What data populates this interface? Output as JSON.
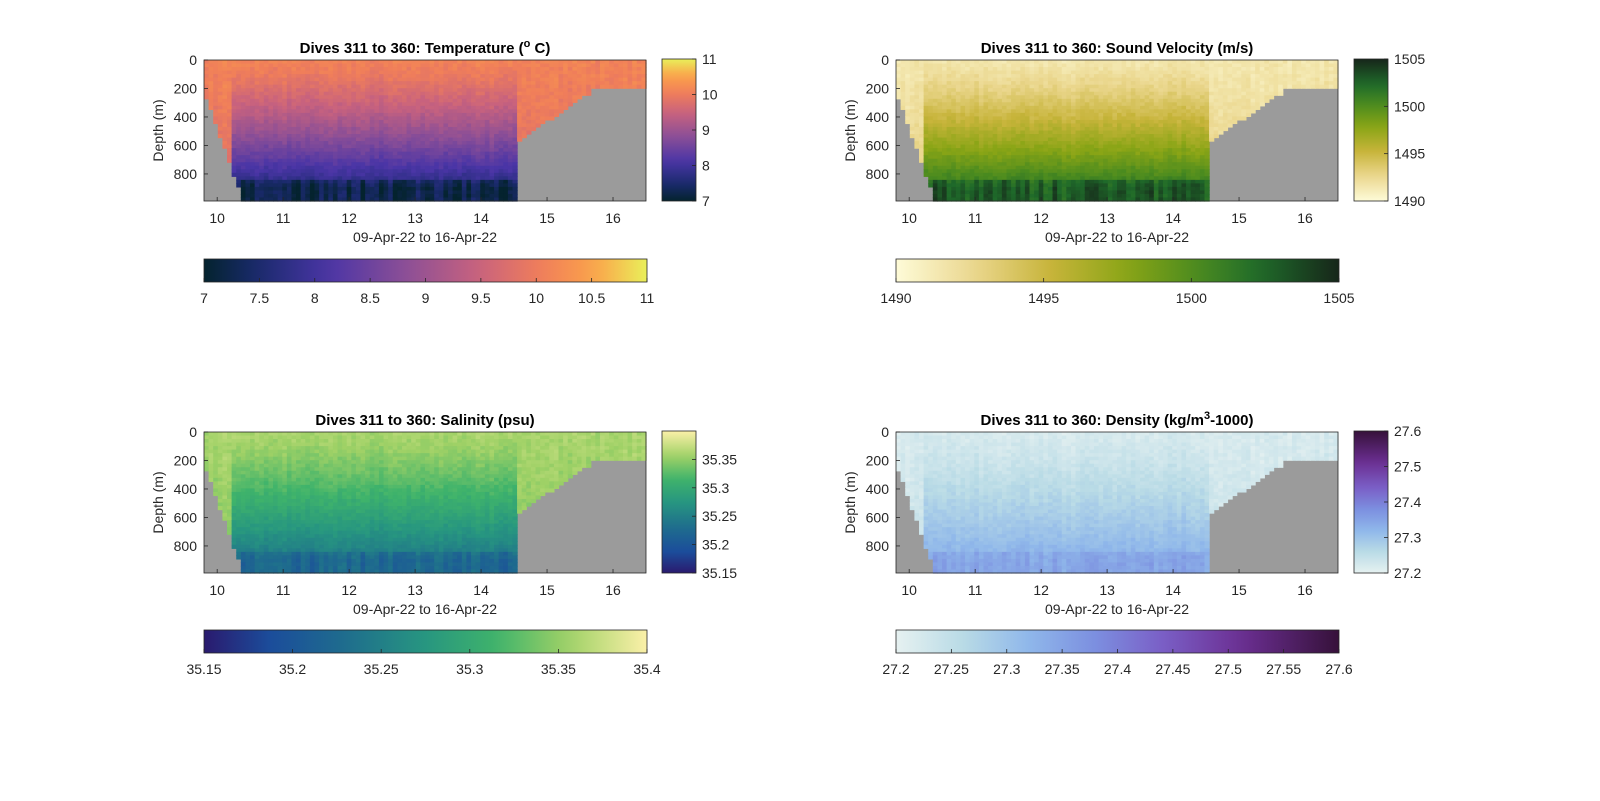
{
  "figure": {
    "shared": {
      "xlabel": "09-Apr-22 to 16-Apr-22",
      "ylabel": "Depth (m)",
      "x_tick_labels": [
        "10",
        "11",
        "12",
        "13",
        "14",
        "15",
        "16"
      ],
      "y_tick_labels": [
        "0",
        "200",
        "400",
        "600",
        "800"
      ]
    }
  },
  "chart_data": [
    {
      "type": "heatmap",
      "title_text": "Dives 311 to 360: Temperature (",
      "title_sup": "o",
      "title_end": " C)",
      "xlabel": "09-Apr-22 to 16-Apr-22",
      "ylabel": "Depth (m)",
      "x": [
        10,
        11,
        12,
        13,
        14,
        15,
        16
      ],
      "xlim": [
        9.8,
        16.5
      ],
      "y": [
        0,
        200,
        400,
        600,
        800
      ],
      "ylim": [
        0,
        990
      ],
      "y_reversed": true,
      "seafloor_color": "#9b9b9b",
      "colormap": "thermal",
      "clim": [
        7,
        11
      ],
      "colorbar_right_ticks": [
        7,
        8,
        9,
        10,
        11
      ],
      "colorbar_bottom_ticks": [
        7,
        7.5,
        8,
        8.5,
        9,
        9.5,
        10,
        10.5,
        11
      ],
      "colorbar_bottom_tick_labels": [
        "7",
        "7.5",
        "8",
        "8.5",
        "9",
        "9.5",
        "10",
        "10.5",
        "11"
      ],
      "surface_value": 10.1,
      "deep_value": 7.6
    },
    {
      "type": "heatmap",
      "title_text": "Dives 311 to 360: Sound Velocity (m/s)",
      "xlabel": "09-Apr-22 to 16-Apr-22",
      "ylabel": "Depth (m)",
      "x": [
        10,
        11,
        12,
        13,
        14,
        15,
        16
      ],
      "xlim": [
        9.8,
        16.5
      ],
      "y": [
        0,
        200,
        400,
        600,
        800
      ],
      "ylim": [
        0,
        990
      ],
      "y_reversed": true,
      "seafloor_color": "#9b9b9b",
      "colormap": "speed",
      "clim": [
        1490,
        1505
      ],
      "colorbar_right_ticks": [
        1490,
        1495,
        1500,
        1505
      ],
      "colorbar_bottom_ticks": [
        1490,
        1495,
        1500,
        1505
      ],
      "colorbar_bottom_tick_labels": [
        "1490",
        "1495",
        "1500",
        "1505"
      ],
      "surface_value": 1491.5,
      "deep_value": 1501.5
    },
    {
      "type": "heatmap",
      "title_text": "Dives 311 to 360: Salinity (psu)",
      "xlabel": "09-Apr-22 to 16-Apr-22",
      "ylabel": "Depth (m)",
      "x": [
        10,
        11,
        12,
        13,
        14,
        15,
        16
      ],
      "xlim": [
        9.8,
        16.5
      ],
      "y": [
        0,
        200,
        400,
        600,
        800
      ],
      "ylim": [
        0,
        990
      ],
      "y_reversed": true,
      "seafloor_color": "#9b9b9b",
      "colormap": "haline",
      "clim": [
        35.15,
        35.4
      ],
      "colorbar_right_ticks": [
        35.15,
        35.2,
        35.25,
        35.3,
        35.35
      ],
      "colorbar_bottom_ticks": [
        35.15,
        35.2,
        35.25,
        35.3,
        35.35,
        35.4
      ],
      "colorbar_bottom_tick_labels": [
        "35.15",
        "35.2",
        "35.25",
        "35.3",
        "35.35",
        "35.4"
      ],
      "surface_value": 35.36,
      "deep_value": 35.24
    },
    {
      "type": "heatmap",
      "title_text": "Dives 311 to 360: Density (kg/m",
      "title_sup": "3",
      "title_end": "-1000)",
      "xlabel": "09-Apr-22 to 16-Apr-22",
      "ylabel": "Depth (m)",
      "x": [
        10,
        11,
        12,
        13,
        14,
        15,
        16
      ],
      "xlim": [
        9.8,
        16.5
      ],
      "y": [
        0,
        200,
        400,
        600,
        800
      ],
      "ylim": [
        0,
        990
      ],
      "y_reversed": true,
      "seafloor_color": "#9b9b9b",
      "colormap": "dense",
      "clim": [
        27.2,
        27.6
      ],
      "colorbar_right_ticks": [
        27.2,
        27.3,
        27.4,
        27.5,
        27.6
      ],
      "colorbar_bottom_ticks": [
        27.2,
        27.25,
        27.3,
        27.35,
        27.4,
        27.45,
        27.5,
        27.55,
        27.6
      ],
      "colorbar_bottom_tick_labels": [
        "27.2",
        "27.25",
        "27.3",
        "27.35",
        "27.4",
        "27.45",
        "27.5",
        "27.55",
        "27.6"
      ],
      "surface_value": 27.22,
      "deep_value": 27.33
    }
  ]
}
